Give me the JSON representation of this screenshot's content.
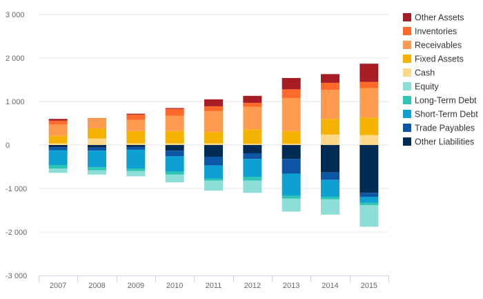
{
  "chart_data": {
    "type": "bar",
    "stacked": true,
    "categories": [
      "2007",
      "2008",
      "2009",
      "2010",
      "2011",
      "2012",
      "2013",
      "2014",
      "2015"
    ],
    "ylim": [
      -3000,
      3000
    ],
    "yticks": [
      3000,
      2000,
      1000,
      0,
      -1000,
      -2000,
      -3000
    ],
    "ytick_labels": [
      "3 000",
      "2 000",
      "1 000",
      "0",
      "-1 000",
      "-2 000",
      "-3 000"
    ],
    "grid": true,
    "legend_position": "right",
    "series": [
      {
        "name": "Other Liabilities",
        "color": "#002b55",
        "values": [
          -50,
          -60,
          -40,
          -130,
          -270,
          -190,
          -320,
          -630,
          -1100
        ]
      },
      {
        "name": "Trade Payables",
        "color": "#0d56a6",
        "values": [
          -70,
          -70,
          -70,
          -130,
          -200,
          -130,
          -340,
          -170,
          -90
        ]
      },
      {
        "name": "Short-Term Debt",
        "color": "#0ea0d0",
        "values": [
          -340,
          -380,
          -430,
          -350,
          -300,
          -410,
          -510,
          -390,
          -140
        ]
      },
      {
        "name": "Long-Term Debt",
        "color": "#2ec4b6",
        "values": [
          -80,
          -70,
          -60,
          -70,
          -50,
          -90,
          -60,
          -60,
          -50
        ]
      },
      {
        "name": "Equity",
        "color": "#8dded7",
        "values": [
          -100,
          -100,
          -120,
          -180,
          -230,
          -280,
          -300,
          -350,
          -500
        ]
      },
      {
        "name": "Cash",
        "color": "#ffd98a",
        "values": [
          40,
          150,
          40,
          40,
          40,
          30,
          30,
          240,
          230
        ]
      },
      {
        "name": "Fixed Assets",
        "color": "#f5b300",
        "values": [
          170,
          230,
          280,
          280,
          260,
          330,
          290,
          360,
          400
        ]
      },
      {
        "name": "Receivables",
        "color": "#ff9b51",
        "values": [
          260,
          230,
          260,
          350,
          480,
          520,
          760,
          670,
          680
        ]
      },
      {
        "name": "Inventories",
        "color": "#ff6a2a",
        "values": [
          90,
          10,
          120,
          160,
          110,
          90,
          200,
          160,
          140
        ]
      },
      {
        "name": "Other Assets",
        "color": "#a81c25",
        "values": [
          40,
          0,
          20,
          20,
          160,
          160,
          260,
          200,
          420
        ]
      }
    ],
    "legend_order": [
      "Other Assets",
      "Inventories",
      "Receivables",
      "Fixed Assets",
      "Cash",
      "Equity",
      "Long-Term Debt",
      "Short-Term Debt",
      "Trade Payables",
      "Other Liabilities"
    ]
  }
}
